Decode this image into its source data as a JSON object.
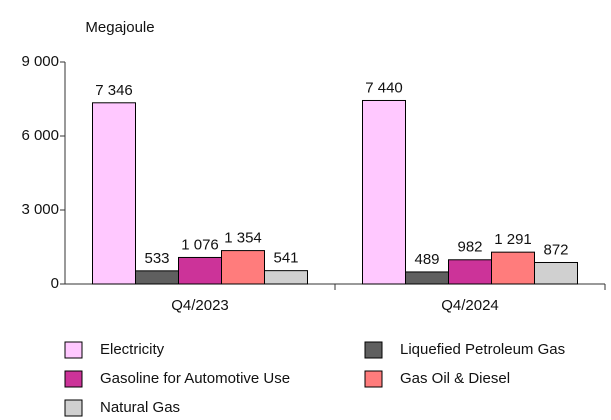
{
  "chart_data": {
    "type": "bar",
    "y_axis_label": "Megajoule",
    "categories": [
      "Q4/2023",
      "Q4/2024"
    ],
    "series": [
      {
        "name": "Electricity",
        "color": "#ffc8ff",
        "values": [
          7346,
          7440
        ],
        "value_labels": [
          "7 346",
          "7 440"
        ]
      },
      {
        "name": "Liquefied Petroleum Gas",
        "color": "#5f5f5f",
        "values": [
          533,
          489
        ],
        "value_labels": [
          "533",
          "489"
        ]
      },
      {
        "name": "Gasoline for Automotive Use",
        "color": "#cc3399",
        "values": [
          1076,
          982
        ],
        "value_labels": [
          "1 076",
          "982"
        ]
      },
      {
        "name": "Gas Oil & Diesel",
        "color": "#ff7c7c",
        "values": [
          1354,
          1291
        ],
        "value_labels": [
          "1 354",
          "1 291"
        ]
      },
      {
        "name": "Natural Gas",
        "color": "#d0d0d0",
        "values": [
          541,
          872
        ],
        "value_labels": [
          "541",
          "872"
        ]
      }
    ],
    "ylim": [
      0,
      9000
    ],
    "yticks": [
      {
        "value": 0,
        "label": "0"
      },
      {
        "value": 3000,
        "label": "3 000"
      },
      {
        "value": 6000,
        "label": "6 000"
      },
      {
        "value": 9000,
        "label": "9 000"
      }
    ],
    "grid": false
  }
}
